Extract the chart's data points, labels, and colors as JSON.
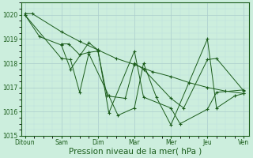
{
  "bg_color": "#cceedd",
  "grid_color_major": "#aacccc",
  "grid_color_minor": "#bbdddd",
  "line_color": "#1a5c1a",
  "xlabel": "Pression niveau de la mer( hPa )",
  "xlabel_fontsize": 7.5,
  "ylim": [
    1015,
    1020.5
  ],
  "yticks": [
    1015,
    1016,
    1017,
    1018,
    1019,
    1020
  ],
  "xtick_labels": [
    "Ditoun",
    "Sam",
    "Dim",
    "Mar",
    "Mer",
    "Jeu",
    "Ven"
  ],
  "xtick_positions": [
    0,
    2,
    4,
    6,
    8,
    10,
    12
  ],
  "lines_data": [
    {
      "x": [
        0,
        0.4,
        2,
        3,
        4,
        5,
        6,
        7,
        8,
        9,
        10,
        11,
        12
      ],
      "y": [
        1020.05,
        1020.05,
        1019.3,
        1018.9,
        1018.55,
        1018.2,
        1017.95,
        1017.65,
        1017.45,
        1017.2,
        1017.0,
        1016.85,
        1016.75
      ]
    },
    {
      "x": [
        0,
        0.8,
        2,
        2.5,
        3.5,
        4.0,
        4.6,
        6.0,
        6.5,
        8.0,
        8.5,
        10,
        10.5,
        12
      ],
      "y": [
        1020.0,
        1019.1,
        1018.75,
        1017.75,
        1018.85,
        1018.55,
        1015.95,
        1018.5,
        1016.6,
        1016.15,
        1015.5,
        1016.1,
        1016.8,
        1016.9
      ]
    },
    {
      "x": [
        2,
        2.4,
        3.0,
        3.5,
        4.0,
        4.5,
        5.5,
        6.0,
        6.5,
        8.0,
        8.7,
        10,
        10.5,
        12
      ],
      "y": [
        1018.8,
        1018.8,
        1018.35,
        1018.45,
        1018.5,
        1016.65,
        1016.55,
        1018.0,
        1017.75,
        1016.55,
        1016.15,
        1018.15,
        1018.2,
        1016.85
      ]
    },
    {
      "x": [
        0,
        2,
        2.5,
        3.0,
        3.5,
        4.6,
        5.1,
        6.0,
        6.5,
        7.2,
        8.0,
        10,
        10.5,
        11.5,
        12
      ],
      "y": [
        1020.0,
        1018.2,
        1018.15,
        1016.8,
        1018.4,
        1016.65,
        1015.85,
        1016.15,
        1018.0,
        1016.6,
        1015.45,
        1019.0,
        1016.15,
        1016.65,
        1016.75
      ]
    }
  ]
}
